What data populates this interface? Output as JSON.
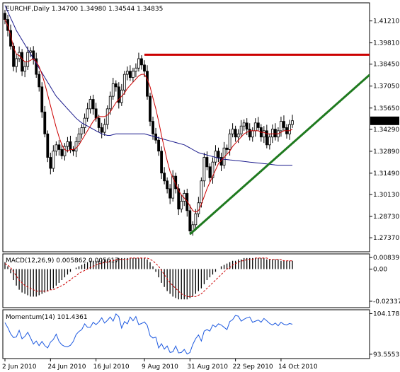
{
  "chart_data": [
    {
      "type": "candlestick",
      "title": "EURCHF,Daily",
      "ohlc_header": [
        "1.34700",
        "1.34980",
        "1.34544",
        "1.34835"
      ],
      "ylim": [
        1.2652,
        1.4232
      ],
      "yticks": [
        "1.41210",
        "1.39810",
        "1.38450",
        "1.37050",
        "1.35650",
        "1.34290",
        "1.32890",
        "1.31490",
        "1.30130",
        "1.28730",
        "1.27370"
      ],
      "last_price": "1.34835",
      "last_price_value": 1.34835,
      "xticks": [
        {
          "label": "2 Jun 2010",
          "index": 0
        },
        {
          "label": "24 Jun 2010",
          "index": 16
        },
        {
          "label": "16 Jul 2010",
          "index": 32
        },
        {
          "label": "9 Aug 2010",
          "index": 49
        },
        {
          "label": "31 Aug 2010",
          "index": 65
        },
        {
          "label": "22 Sep 2010",
          "index": 81
        },
        {
          "label": "14 Oct 2010",
          "index": 97
        }
      ],
      "close": [
        1.413,
        1.406,
        1.396,
        1.383,
        1.388,
        1.392,
        1.38,
        1.383,
        1.392,
        1.393,
        1.388,
        1.378,
        1.37,
        1.354,
        1.34,
        1.325,
        1.318,
        1.329,
        1.333,
        1.33,
        1.326,
        1.332,
        1.335,
        1.33,
        1.329,
        1.335,
        1.34,
        1.344,
        1.35,
        1.356,
        1.362,
        1.356,
        1.35,
        1.344,
        1.341,
        1.346,
        1.356,
        1.364,
        1.372,
        1.37,
        1.36,
        1.368,
        1.378,
        1.38,
        1.376,
        1.38,
        1.382,
        1.388,
        1.384,
        1.38,
        1.364,
        1.348,
        1.34,
        1.336,
        1.329,
        1.315,
        1.31,
        1.305,
        1.299,
        1.313,
        1.305,
        1.292,
        1.297,
        1.302,
        1.291,
        1.278,
        1.282,
        1.289,
        1.296,
        1.31,
        1.325,
        1.319,
        1.312,
        1.322,
        1.329,
        1.325,
        1.32,
        1.331,
        1.33,
        1.34,
        1.343,
        1.338,
        1.34,
        1.345,
        1.347,
        1.343,
        1.338,
        1.342,
        1.347,
        1.344,
        1.338,
        1.342,
        1.333,
        1.338,
        1.343,
        1.338,
        1.342,
        1.348,
        1.344,
        1.34,
        1.346,
        1.3484
      ],
      "ma_red": [
        1.413,
        1.409,
        1.403,
        1.395,
        1.391,
        1.39,
        1.388,
        1.386,
        1.386,
        1.387,
        1.388,
        1.386,
        1.383,
        1.378,
        1.372,
        1.365,
        1.358,
        1.351,
        1.344,
        1.338,
        1.333,
        1.33,
        1.329,
        1.33,
        1.33,
        1.331,
        1.333,
        1.336,
        1.339,
        1.342,
        1.345,
        1.348,
        1.35,
        1.351,
        1.351,
        1.351,
        1.352,
        1.354,
        1.357,
        1.36,
        1.362,
        1.364,
        1.366,
        1.369,
        1.371,
        1.373,
        1.375,
        1.377,
        1.378,
        1.378,
        1.375,
        1.37,
        1.363,
        1.356,
        1.348,
        1.339,
        1.331,
        1.323,
        1.316,
        1.312,
        1.308,
        1.304,
        1.301,
        1.299,
        1.297,
        1.294,
        1.291,
        1.29,
        1.291,
        1.295,
        1.3,
        1.305,
        1.309,
        1.313,
        1.317,
        1.321,
        1.323,
        1.325,
        1.327,
        1.329,
        1.332,
        1.334,
        1.336,
        1.338,
        1.34,
        1.341,
        1.342,
        1.342,
        1.342,
        1.342,
        1.341,
        1.341,
        1.34,
        1.34,
        1.34,
        1.34,
        1.34,
        1.341,
        1.342,
        1.342,
        1.342,
        1.343
      ],
      "ma_blue": [
        1.422,
        1.418,
        1.414,
        1.41,
        1.406,
        1.403,
        1.4,
        1.397,
        1.394,
        1.391,
        1.388,
        1.385,
        1.382,
        1.379,
        1.376,
        1.373,
        1.37,
        1.367,
        1.364,
        1.362,
        1.36,
        1.358,
        1.356,
        1.354,
        1.352,
        1.35,
        1.3485,
        1.347,
        1.346,
        1.345,
        1.344,
        1.343,
        1.342,
        1.341,
        1.34,
        1.3395,
        1.339,
        1.339,
        1.3395,
        1.34,
        1.34,
        1.34,
        1.34,
        1.34,
        1.34,
        1.34,
        1.34,
        1.34,
        1.34,
        1.34,
        1.3395,
        1.339,
        1.3385,
        1.338,
        1.3375,
        1.337,
        1.3365,
        1.336,
        1.3355,
        1.335,
        1.3345,
        1.334,
        1.3335,
        1.333,
        1.332,
        1.331,
        1.33,
        1.329,
        1.328,
        1.3275,
        1.327,
        1.3265,
        1.326,
        1.3255,
        1.325,
        1.3245,
        1.324,
        1.3238,
        1.3236,
        1.3234,
        1.3232,
        1.323,
        1.3228,
        1.3226,
        1.3224,
        1.3222,
        1.322,
        1.3218,
        1.3216,
        1.3214,
        1.3212,
        1.321,
        1.3208,
        1.3206,
        1.3204,
        1.3202,
        1.32,
        1.32,
        1.32,
        1.32,
        1.32,
        1.32
      ],
      "resistance_line": {
        "value": 1.3905,
        "from_index": 49
      },
      "trend_line": {
        "points": [
          [
            65,
            1.276
          ],
          [
            101,
            1.334
          ]
        ],
        "extends_right": true
      }
    },
    {
      "type": "histogram",
      "title": "MACD(12,26,9) 0.005862 0.005617",
      "ylim": [
        -0.0275,
        0.0105
      ],
      "yticks": [
        "0.00839",
        "0.00",
        "-0.02337"
      ],
      "histogram": [
        0.005,
        0.002,
        -0.003,
        -0.008,
        -0.012,
        -0.015,
        -0.017,
        -0.018,
        -0.019,
        -0.02,
        -0.02,
        -0.02,
        -0.019,
        -0.018,
        -0.017,
        -0.016,
        -0.015,
        -0.014,
        -0.012,
        -0.01,
        -0.008,
        -0.006,
        -0.004,
        -0.002,
        0.0,
        0.001,
        0.002,
        0.003,
        0.004,
        0.005,
        0.006,
        0.006,
        0.006,
        0.006,
        0.007,
        0.007,
        0.007,
        0.007,
        0.007,
        0.007,
        0.008,
        0.008,
        0.008,
        0.008,
        0.008,
        0.008,
        0.008,
        0.008,
        0.008,
        0.008,
        0.007,
        0.005,
        0.002,
        -0.002,
        -0.006,
        -0.01,
        -0.013,
        -0.016,
        -0.018,
        -0.02,
        -0.021,
        -0.022,
        -0.022,
        -0.022,
        -0.022,
        -0.021,
        -0.02,
        -0.018,
        -0.016,
        -0.014,
        -0.011,
        -0.008,
        -0.006,
        -0.004,
        -0.002,
        0.0,
        0.002,
        0.003,
        0.004,
        0.005,
        0.006,
        0.006,
        0.007,
        0.007,
        0.008,
        0.008,
        0.008,
        0.008,
        0.008,
        0.008,
        0.008,
        0.008,
        0.007,
        0.007,
        0.007,
        0.007,
        0.007,
        0.006,
        0.006,
        0.006,
        0.006,
        0.006
      ],
      "signal": [
        0.004,
        0.003,
        0.001,
        -0.002,
        -0.005,
        -0.008,
        -0.01,
        -0.012,
        -0.013,
        -0.014,
        -0.015,
        -0.016,
        -0.016,
        -0.016,
        -0.016,
        -0.016,
        -0.015,
        -0.015,
        -0.014,
        -0.013,
        -0.012,
        -0.011,
        -0.009,
        -0.008,
        -0.006,
        -0.005,
        -0.003,
        -0.002,
        -0.001,
        0.0,
        0.001,
        0.002,
        0.003,
        0.004,
        0.004,
        0.005,
        0.005,
        0.006,
        0.006,
        0.007,
        0.007,
        0.007,
        0.007,
        0.007,
        0.008,
        0.008,
        0.008,
        0.008,
        0.008,
        0.008,
        0.008,
        0.007,
        0.006,
        0.004,
        0.002,
        -0.001,
        -0.004,
        -0.007,
        -0.01,
        -0.012,
        -0.014,
        -0.016,
        -0.018,
        -0.019,
        -0.02,
        -0.02,
        -0.02,
        -0.02,
        -0.019,
        -0.018,
        -0.016,
        -0.014,
        -0.012,
        -0.01,
        -0.008,
        -0.006,
        -0.004,
        -0.002,
        0.0,
        0.001,
        0.003,
        0.004,
        0.005,
        0.006,
        0.006,
        0.007,
        0.007,
        0.007,
        0.008,
        0.008,
        0.008,
        0.008,
        0.008,
        0.007,
        0.007,
        0.007,
        0.007,
        0.007,
        0.006,
        0.006,
        0.006,
        0.006
      ]
    },
    {
      "type": "line",
      "title": "Momentum(14) 101.4361",
      "ylim": [
        92.6,
        105.0
      ],
      "yticks": [
        "104.1787",
        "93.5553"
      ],
      "values": [
        101.8,
        100.5,
        98.9,
        97.9,
        98.1,
        99.8,
        97.6,
        98.2,
        99.3,
        97.8,
        96.2,
        97.0,
        95.8,
        96.9,
        95.8,
        95.2,
        96.7,
        97.4,
        98.8,
        96.9,
        96.0,
        95.6,
        95.5,
        95.9,
        96.9,
        98.7,
        99.5,
        100.0,
        101.5,
        100.6,
        100.6,
        101.9,
        101.3,
        102.0,
        103.1,
        101.7,
        102.4,
        103.3,
        102.2,
        104.1,
        103.4,
        100.4,
        102.1,
        101.5,
        103.3,
        102.3,
        103.4,
        101.3,
        101.6,
        102.0,
        101.1,
        98.4,
        97.8,
        98.0,
        95.2,
        96.3,
        94.9,
        95.7,
        94.0,
        94.2,
        95.7,
        93.9,
        94.0,
        94.8,
        93.6,
        94.0,
        96.1,
        97.6,
        98.6,
        97.0,
        99.6,
        100.0,
        99.6,
        101.2,
        100.7,
        101.5,
        101.2,
        100.6,
        100.0,
        102.1,
        102.6,
        103.7,
        103.5,
        102.2,
        102.7,
        103.1,
        103.3,
        101.9,
        102.2,
        102.5,
        101.9,
        102.9,
        102.3,
        101.6,
        101.2,
        101.7,
        101.0,
        101.9,
        101.4,
        101.2,
        101.6,
        101.4
      ]
    }
  ]
}
